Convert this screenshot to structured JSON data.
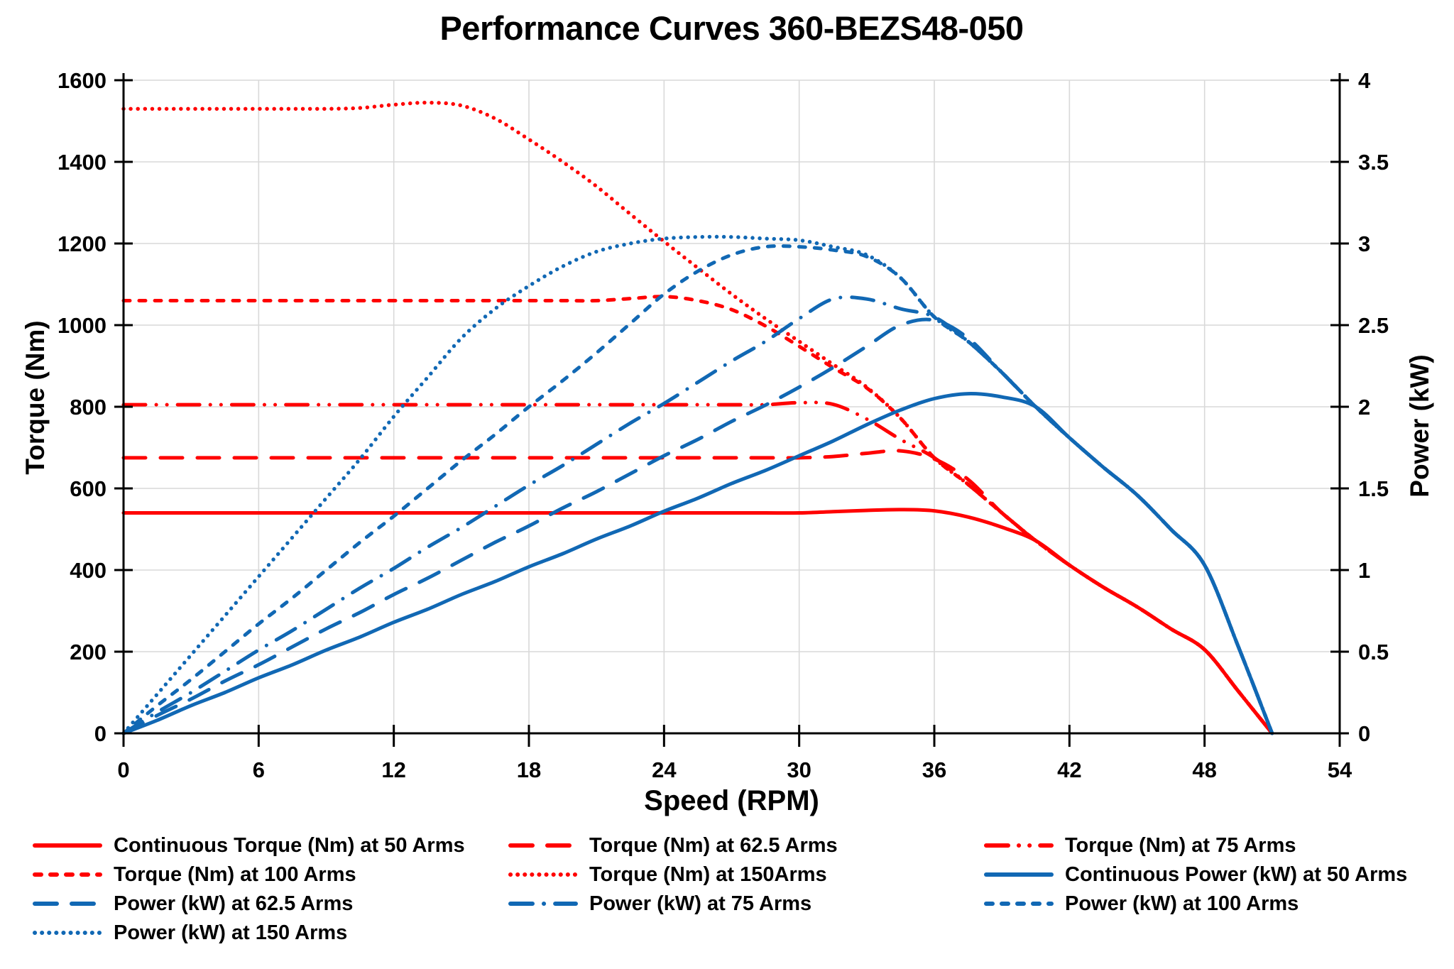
{
  "title": "Performance Curves 360-BEZS48-050",
  "axes": {
    "x": {
      "label": "Speed (RPM)",
      "min": 0,
      "max": 54,
      "ticks": [
        "0",
        "6",
        "12",
        "18",
        "24",
        "30",
        "36",
        "42",
        "48",
        "54"
      ]
    },
    "y_left": {
      "label": "Torque (Nm)",
      "min": 0,
      "max": 1600,
      "ticks": [
        "0",
        "200",
        "400",
        "600",
        "800",
        "1000",
        "1200",
        "1400",
        "1600"
      ]
    },
    "y_right": {
      "label": "Power (kW)",
      "min": 0,
      "max": 4,
      "ticks": [
        "0",
        "0.5",
        "1",
        "1.5",
        "2",
        "2.5",
        "3",
        "3.5",
        "4"
      ]
    }
  },
  "colors": {
    "torque_red": "#FF0000",
    "power_blue": "#1168B4",
    "grid": "#D9D9D9",
    "axis": "#000000",
    "text": "#000000"
  },
  "chart_data": {
    "type": "line",
    "title": "Performance Curves 360-BEZS48-050",
    "xlabel": "Speed (RPM)",
    "ylabel_left": "Torque (Nm)",
    "ylabel_right": "Power (kW)",
    "x_range": [
      0,
      54
    ],
    "y_left_range": [
      0,
      1600
    ],
    "y_right_range": [
      0,
      4
    ],
    "grid": "on",
    "legend_position": "bottom",
    "x_rpm": [
      0,
      1.5,
      3,
      4.5,
      6,
      7.5,
      9,
      10.5,
      12,
      13.5,
      15,
      16.5,
      18,
      19.5,
      21,
      22.5,
      24,
      25.5,
      27,
      28.5,
      30,
      31.5,
      33,
      34.5,
      36,
      37.5,
      39,
      40.5,
      42,
      43.5,
      45,
      46.5,
      48,
      49.5,
      51
    ],
    "series": [
      {
        "name": "Continuous Torque (Nm) at 50 Arms",
        "axis": "left",
        "color": "torque_red",
        "style": "solid",
        "values": [
          540,
          540,
          540,
          540,
          540,
          540,
          540,
          540,
          540,
          540,
          540,
          540,
          540,
          540,
          540,
          540,
          540,
          540,
          540,
          540,
          540,
          543,
          546,
          548,
          545,
          530,
          505,
          472,
          412,
          358,
          310,
          256,
          205,
          103,
          0
        ]
      },
      {
        "name": "Torque (Nm) at 62.5 Arms",
        "axis": "left",
        "color": "torque_red",
        "style": "long-dash",
        "values": [
          675,
          675,
          675,
          675,
          675,
          675,
          675,
          675,
          675,
          675,
          675,
          675,
          675,
          675,
          675,
          675,
          675,
          675,
          675,
          675,
          675,
          678,
          686,
          692,
          672,
          622,
          540,
          472,
          412,
          358,
          310,
          256,
          205,
          103,
          0
        ]
      },
      {
        "name": "Torque (Nm) at 75 Arms",
        "axis": "left",
        "color": "torque_red",
        "style": "dash-dot-dot",
        "values": [
          805,
          805,
          805,
          805,
          805,
          805,
          805,
          805,
          805,
          805,
          805,
          805,
          805,
          805,
          805,
          805,
          805,
          805,
          805,
          805,
          810,
          806,
          770,
          720,
          675,
          610,
          540,
          472,
          412,
          358,
          310,
          256,
          205,
          103,
          0
        ]
      },
      {
        "name": "Torque (Nm) at 100 Arms",
        "axis": "left",
        "color": "torque_red",
        "style": "short-dash",
        "values": [
          1060,
          1060,
          1060,
          1060,
          1060,
          1060,
          1060,
          1060,
          1060,
          1060,
          1060,
          1060,
          1060,
          1060,
          1060,
          1065,
          1070,
          1060,
          1038,
          998,
          948,
          896,
          846,
          772,
          675,
          610,
          540,
          472,
          412,
          358,
          310,
          256,
          205,
          103,
          0
        ]
      },
      {
        "name": "Torque (Nm) at 150Arms",
        "axis": "left",
        "color": "torque_red",
        "style": "dot",
        "values": [
          1530,
          1530,
          1530,
          1530,
          1530,
          1530,
          1530,
          1532,
          1540,
          1545,
          1538,
          1506,
          1455,
          1400,
          1340,
          1272,
          1205,
          1140,
          1076,
          1016,
          960,
          904,
          848,
          772,
          675,
          610,
          540,
          472,
          412,
          358,
          310,
          256,
          205,
          103,
          0
        ]
      },
      {
        "name": "Continuous Power (kW) at 50 Arms",
        "axis": "right",
        "color": "power_blue",
        "style": "solid",
        "values": [
          0,
          0.08,
          0.17,
          0.25,
          0.34,
          0.42,
          0.51,
          0.59,
          0.68,
          0.76,
          0.85,
          0.93,
          1.02,
          1.1,
          1.19,
          1.27,
          1.36,
          1.44,
          1.53,
          1.61,
          1.7,
          1.79,
          1.89,
          1.98,
          2.05,
          2.08,
          2.06,
          2.0,
          1.81,
          1.63,
          1.46,
          1.25,
          1.03,
          0.53,
          0
        ]
      },
      {
        "name": "Power (kW) at 62.5 Arms",
        "axis": "right",
        "color": "power_blue",
        "style": "long-dash",
        "values": [
          0,
          0.11,
          0.21,
          0.32,
          0.42,
          0.53,
          0.64,
          0.74,
          0.85,
          0.95,
          1.06,
          1.17,
          1.27,
          1.38,
          1.48,
          1.59,
          1.7,
          1.8,
          1.91,
          2.01,
          2.12,
          2.24,
          2.37,
          2.5,
          2.53,
          2.42,
          2.21,
          2.0,
          1.81,
          1.63,
          1.46,
          1.25,
          1.03,
          0.53,
          0
        ]
      },
      {
        "name": "Power (kW) at 75 Arms",
        "axis": "right",
        "color": "power_blue",
        "style": "dash-dot",
        "values": [
          0,
          0.13,
          0.25,
          0.38,
          0.51,
          0.63,
          0.76,
          0.89,
          1.01,
          1.14,
          1.26,
          1.39,
          1.52,
          1.64,
          1.77,
          1.9,
          2.02,
          2.15,
          2.28,
          2.4,
          2.54,
          2.66,
          2.66,
          2.6,
          2.55,
          2.4,
          2.21,
          2.0,
          1.81,
          1.63,
          1.46,
          1.25,
          1.03,
          0.53,
          0
        ]
      },
      {
        "name": "Power (kW) at 100 Arms",
        "axis": "right",
        "color": "power_blue",
        "style": "short-dash",
        "values": [
          0,
          0.17,
          0.33,
          0.5,
          0.67,
          0.83,
          1.0,
          1.17,
          1.33,
          1.5,
          1.67,
          1.83,
          2.0,
          2.16,
          2.33,
          2.51,
          2.69,
          2.83,
          2.93,
          2.98,
          2.98,
          2.96,
          2.92,
          2.79,
          2.55,
          2.4,
          2.21,
          2.0,
          1.81,
          1.63,
          1.46,
          1.25,
          1.03,
          0.53,
          0
        ]
      },
      {
        "name": "Power (kW) at 150 Arms",
        "axis": "right",
        "color": "power_blue",
        "style": "dot",
        "values": [
          0,
          0.24,
          0.48,
          0.72,
          0.96,
          1.2,
          1.44,
          1.68,
          1.94,
          2.18,
          2.42,
          2.6,
          2.74,
          2.86,
          2.95,
          3.0,
          3.03,
          3.04,
          3.04,
          3.03,
          3.02,
          2.98,
          2.93,
          2.79,
          2.55,
          2.4,
          2.21,
          2.0,
          1.81,
          1.63,
          1.46,
          1.25,
          1.03,
          0.53,
          0
        ]
      }
    ]
  },
  "legend": {
    "columns": 3,
    "order": [
      0,
      1,
      2,
      3,
      4,
      5,
      6,
      7,
      8,
      9
    ]
  }
}
